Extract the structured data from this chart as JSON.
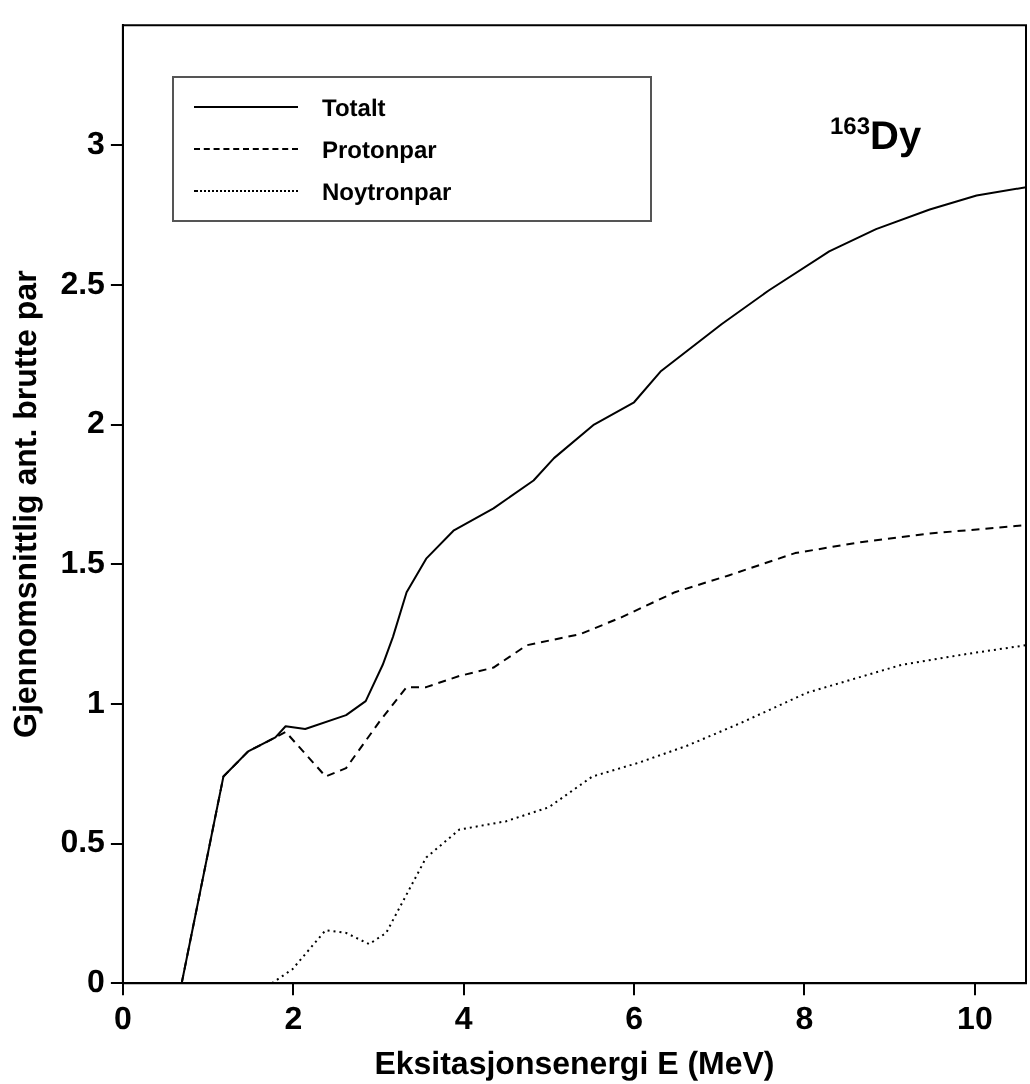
{
  "chart_data": {
    "type": "line",
    "xlabel": "Eksitasjonsenergi E (MeV)",
    "ylabel": "Gjennomsnittlig ant. brutte par",
    "annotations": [
      "$^{163}$Dy"
    ],
    "xlim": [
      0,
      10.6
    ],
    "ylim": [
      0,
      3.43
    ],
    "xticks": [
      0,
      2,
      4,
      6,
      8,
      10
    ],
    "yticks": [
      0,
      0.5,
      1,
      1.5,
      2,
      2.5,
      3
    ],
    "grid": false,
    "legend": "top left",
    "marker": "none",
    "series": [
      {
        "name": "Totalt",
        "color": "#000000",
        "line_style": "solid",
        "x": [
          0.69,
          1.18,
          1.47,
          1.79,
          1.91,
          2.14,
          2.62,
          2.85,
          3.05,
          3.17,
          3.33,
          3.56,
          3.88,
          4.35,
          4.82,
          5.06,
          5.53,
          6.0,
          6.31,
          7.03,
          7.58,
          8.29,
          8.84,
          9.47,
          10.02,
          10.6
        ],
        "values": [
          0,
          0.74,
          0.83,
          0.88,
          0.92,
          0.91,
          0.96,
          1.01,
          1.14,
          1.24,
          1.4,
          1.52,
          1.62,
          1.7,
          1.8,
          1.88,
          2.0,
          2.08,
          2.19,
          2.36,
          2.48,
          2.62,
          2.7,
          2.77,
          2.82,
          2.85
        ]
      },
      {
        "name": "Protonpar",
        "color": "#000000",
        "line_style": "dashed",
        "x": [
          0.69,
          1.18,
          1.47,
          1.79,
          1.91,
          2.38,
          2.62,
          3.02,
          3.33,
          3.56,
          3.95,
          4.35,
          4.74,
          5.37,
          5.85,
          6.48,
          7.11,
          7.89,
          8.68,
          9.47,
          10.6
        ],
        "values": [
          0,
          0.74,
          0.83,
          0.88,
          0.9,
          0.74,
          0.77,
          0.94,
          1.06,
          1.06,
          1.1,
          1.13,
          1.21,
          1.25,
          1.31,
          1.4,
          1.46,
          1.54,
          1.58,
          1.61,
          1.64
        ]
      },
      {
        "name": "Noytronpar",
        "color": "#000000",
        "line_style": "dotted",
        "x": [
          1.75,
          1.99,
          2.38,
          2.62,
          2.89,
          3.09,
          3.56,
          3.95,
          4.5,
          5.0,
          5.51,
          6.06,
          6.62,
          7.24,
          8.03,
          9.14,
          9.93,
          10.6
        ],
        "values": [
          0,
          0.05,
          0.19,
          0.18,
          0.14,
          0.18,
          0.45,
          0.55,
          0.58,
          0.63,
          0.74,
          0.79,
          0.85,
          0.93,
          1.04,
          1.14,
          1.18,
          1.21
        ]
      }
    ]
  }
}
